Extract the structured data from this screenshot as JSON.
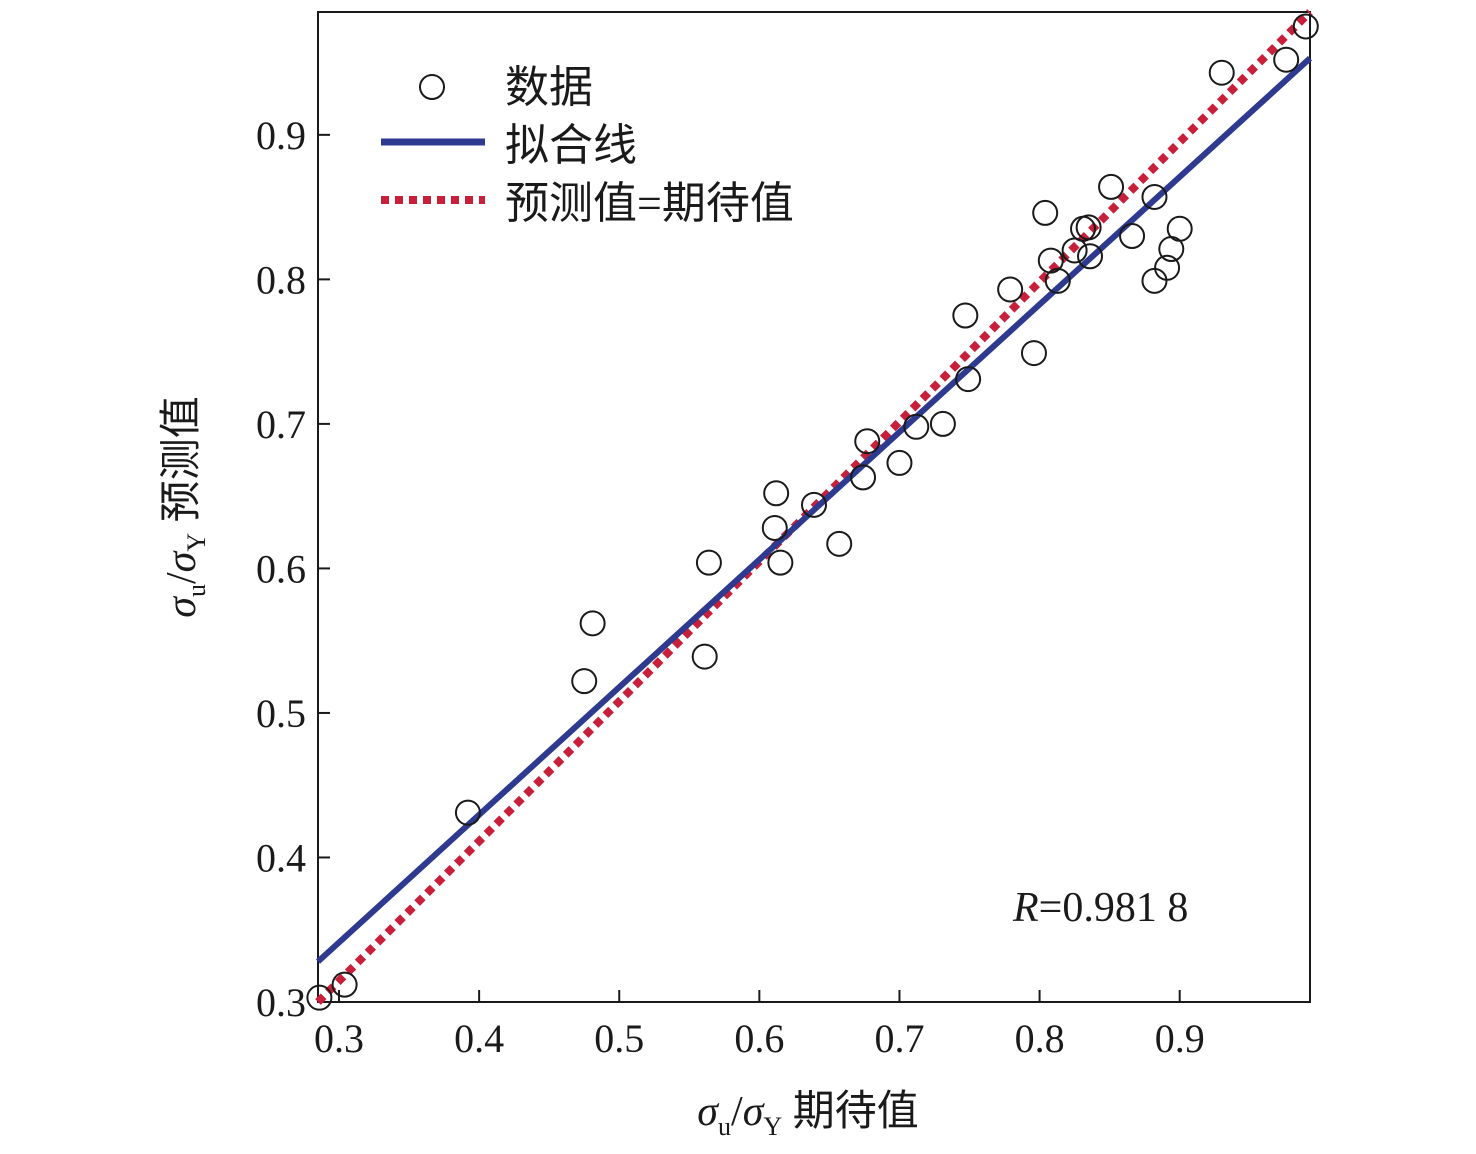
{
  "chart_data": {
    "type": "scatter",
    "xlabel": {
      "sym1": "σ",
      "sub1": "u",
      "slash": "/",
      "sym2": "σ",
      "sub2": "Y",
      "suffix": " 期待值"
    },
    "ylabel": {
      "sym1": "σ",
      "sub1": "u",
      "slash": "/",
      "sym2": "σ",
      "sub2": "Y",
      "suffix": " 预测值"
    },
    "xlim": [
      0.285,
      0.993
    ],
    "ylim": [
      0.3,
      0.985
    ],
    "xticks": [
      "0.3",
      "0.4",
      "0.5",
      "0.6",
      "0.7",
      "0.8",
      "0.9"
    ],
    "yticks": [
      "0.3",
      "0.4",
      "0.5",
      "0.6",
      "0.7",
      "0.8",
      "0.9"
    ],
    "legend_position": "top-left",
    "legend": {
      "data": "数据",
      "fit": "拟合线",
      "identity": "预测值=期待值"
    },
    "annotation": {
      "italic": "R",
      "text": "=0.981 8"
    },
    "colors": {
      "fit_line": "#2e3a8f",
      "identity_line": "#c8203a",
      "marker": "#1a1a1a"
    },
    "fit_line": {
      "x": [
        0.285,
        0.993
      ],
      "y": [
        0.328,
        0.953
      ]
    },
    "identity_line": {
      "x": [
        0.285,
        0.993
      ],
      "y": [
        0.3,
        0.985
      ]
    },
    "series": [
      {
        "name": "数据",
        "points": [
          [
            0.286,
            0.303
          ],
          [
            0.304,
            0.312
          ],
          [
            0.392,
            0.431
          ],
          [
            0.475,
            0.522
          ],
          [
            0.481,
            0.562
          ],
          [
            0.561,
            0.539
          ],
          [
            0.564,
            0.604
          ],
          [
            0.611,
            0.628
          ],
          [
            0.612,
            0.652
          ],
          [
            0.615,
            0.604
          ],
          [
            0.639,
            0.644
          ],
          [
            0.657,
            0.617
          ],
          [
            0.674,
            0.663
          ],
          [
            0.677,
            0.688
          ],
          [
            0.7,
            0.673
          ],
          [
            0.712,
            0.698
          ],
          [
            0.731,
            0.7
          ],
          [
            0.747,
            0.775
          ],
          [
            0.749,
            0.731
          ],
          [
            0.779,
            0.793
          ],
          [
            0.796,
            0.749
          ],
          [
            0.804,
            0.846
          ],
          [
            0.808,
            0.813
          ],
          [
            0.813,
            0.799
          ],
          [
            0.825,
            0.82
          ],
          [
            0.831,
            0.835
          ],
          [
            0.835,
            0.836
          ],
          [
            0.836,
            0.816
          ],
          [
            0.851,
            0.864
          ],
          [
            0.866,
            0.83
          ],
          [
            0.882,
            0.857
          ],
          [
            0.882,
            0.799
          ],
          [
            0.891,
            0.808
          ],
          [
            0.894,
            0.821
          ],
          [
            0.9,
            0.835
          ],
          [
            0.93,
            0.943
          ],
          [
            0.976,
            0.952
          ],
          [
            0.99,
            0.975
          ]
        ]
      }
    ]
  }
}
